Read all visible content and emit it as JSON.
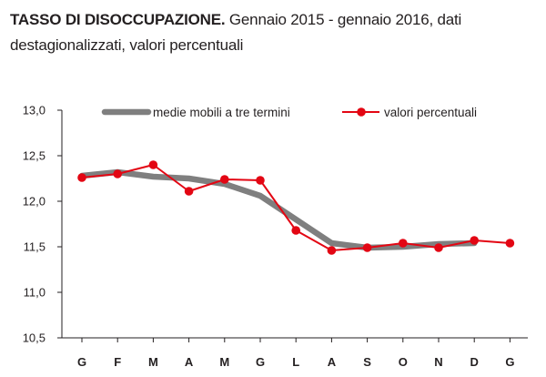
{
  "title": {
    "strong": "TASSO DI DISOCCUPAZIONE.",
    "subtitle": "Gennaio 2015 - gennaio 2016, dati destagionalizzati, valori percentuali"
  },
  "colors": {
    "moving_average": "#7f7f7f",
    "percent_values": "#e30613",
    "axis": "#231f20"
  },
  "chart_data": {
    "type": "line",
    "categories": [
      "G",
      "F",
      "M",
      "A",
      "M",
      "G",
      "L",
      "A",
      "S",
      "O",
      "N",
      "D",
      "G"
    ],
    "yticks": [
      "10,5",
      "11,0",
      "11,5",
      "12,0",
      "12,5",
      "13,0"
    ],
    "ylim": [
      10.5,
      13.0
    ],
    "grid": false,
    "legend_position": "top",
    "series": [
      {
        "name": "medie mobili a tre termini",
        "color": "#7f7f7f",
        "style": "thick-line",
        "values": [
          12.28,
          12.32,
          12.27,
          12.25,
          12.19,
          12.06,
          11.8,
          11.54,
          11.49,
          11.5,
          11.53,
          11.54,
          null
        ]
      },
      {
        "name": "valori percentuali",
        "color": "#e30613",
        "style": "line-markers",
        "values": [
          12.26,
          12.3,
          12.4,
          12.11,
          12.24,
          12.23,
          11.68,
          11.46,
          11.49,
          11.54,
          11.49,
          11.57,
          11.54
        ]
      }
    ]
  }
}
